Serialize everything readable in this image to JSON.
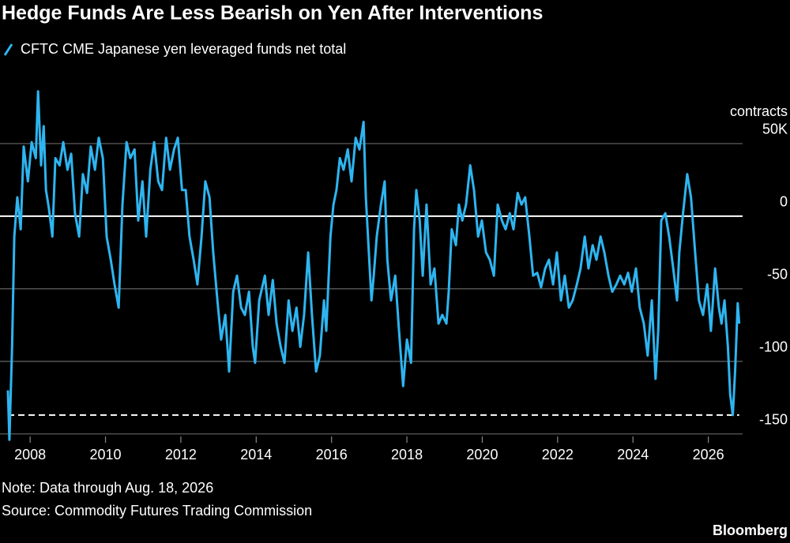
{
  "chart_data": {
    "type": "line",
    "title": "Hedge Funds Are Less Bearish on Yen After Interventions",
    "y_label": "contracts",
    "note": "Note: Data through Aug. 18, 2026",
    "source": "Source: Commodity Futures Trading Commission",
    "brand": "Bloomberg",
    "xlim": [
      2007.2,
      2026.91
    ],
    "xticks": [
      2008,
      2010,
      2012,
      2014,
      2016,
      2018,
      2020,
      2022,
      2024,
      2026
    ],
    "ylim": [
      -155,
      100
    ],
    "yticks": [
      {
        "value": 50,
        "label": "50K"
      },
      0,
      -50,
      -100,
      -150
    ],
    "grid": true,
    "hline": -137,
    "x": [
      2007.41,
      2007.45,
      2007.52,
      2007.58,
      2007.66,
      2007.75,
      2007.83,
      2007.94,
      2008.04,
      2008.15,
      2008.21,
      2008.29,
      2008.36,
      2008.42,
      2008.5,
      2008.59,
      2008.67,
      2008.78,
      2008.88,
      2008.99,
      2009.09,
      2009.19,
      2009.3,
      2009.4,
      2009.51,
      2009.61,
      2009.72,
      2009.82,
      2009.93,
      2010.03,
      2010.14,
      2010.24,
      2010.35,
      2010.45,
      2010.56,
      2010.66,
      2010.77,
      2010.87,
      2010.98,
      2011.08,
      2011.19,
      2011.29,
      2011.4,
      2011.5,
      2011.61,
      2011.71,
      2011.82,
      2011.92,
      2012.03,
      2012.13,
      2012.23,
      2012.34,
      2012.44,
      2012.55,
      2012.65,
      2012.76,
      2012.86,
      2012.97,
      2013.07,
      2013.18,
      2013.28,
      2013.39,
      2013.49,
      2013.6,
      2013.7,
      2013.81,
      2013.91,
      2013.97,
      2014.08,
      2014.23,
      2014.33,
      2014.44,
      2014.54,
      2014.65,
      2014.75,
      2014.86,
      2014.96,
      2015.07,
      2015.17,
      2015.27,
      2015.38,
      2015.48,
      2015.59,
      2015.69,
      2015.8,
      2015.86,
      2015.97,
      2016.05,
      2016.13,
      2016.22,
      2016.32,
      2016.43,
      2016.53,
      2016.64,
      2016.74,
      2016.85,
      2016.91,
      2016.99,
      2017.06,
      2017.12,
      2017.2,
      2017.31,
      2017.41,
      2017.48,
      2017.58,
      2017.69,
      2017.79,
      2017.9,
      2018.0,
      2018.11,
      2018.19,
      2018.25,
      2018.34,
      2018.42,
      2018.52,
      2018.63,
      2018.73,
      2018.84,
      2018.94,
      2019.05,
      2019.11,
      2019.19,
      2019.3,
      2019.38,
      2019.47,
      2019.57,
      2019.68,
      2019.78,
      2019.89,
      2019.99,
      2020.1,
      2020.2,
      2020.31,
      2020.41,
      2020.52,
      2020.62,
      2020.73,
      2020.83,
      2020.94,
      2021.04,
      2021.14,
      2021.25,
      2021.35,
      2021.46,
      2021.56,
      2021.67,
      2021.77,
      2021.88,
      2021.98,
      2022.09,
      2022.19,
      2022.3,
      2022.4,
      2022.51,
      2022.61,
      2022.72,
      2022.82,
      2022.93,
      2023.03,
      2023.14,
      2023.24,
      2023.35,
      2023.45,
      2023.56,
      2023.66,
      2023.77,
      2023.87,
      2023.97,
      2024.08,
      2024.18,
      2024.29,
      2024.39,
      2024.5,
      2024.6,
      2024.67,
      2024.75,
      2024.86,
      2024.96,
      2025.07,
      2025.17,
      2025.23,
      2025.33,
      2025.44,
      2025.54,
      2025.65,
      2025.75,
      2025.86,
      2025.97,
      2026.07,
      2026.18,
      2026.28,
      2026.35,
      2026.43,
      2026.52,
      2026.58,
      2026.65,
      2026.71,
      2026.78,
      2026.82
    ],
    "series": [
      {
        "name": "CFTC CME Japanese yen leveraged funds net total",
        "color": "#2eb5f0",
        "values": [
          -120,
          -154,
          -90,
          -14,
          13,
          -9,
          48,
          24,
          51,
          40,
          86,
          35,
          62,
          18,
          5,
          -14,
          40,
          35,
          51,
          32,
          43,
          2,
          -14,
          29,
          16,
          48,
          32,
          54,
          40,
          -14,
          -30,
          -47,
          -63,
          8,
          51,
          40,
          46,
          -3,
          24,
          -14,
          32,
          51,
          24,
          18,
          54,
          32,
          46,
          54,
          18,
          18,
          -14,
          -30,
          -47,
          -14,
          24,
          13,
          -25,
          -58,
          -85,
          -68,
          -107,
          -52,
          -41,
          -63,
          -68,
          -52,
          -90,
          -101,
          -58,
          -41,
          -68,
          -44,
          -74,
          -90,
          -101,
          -58,
          -79,
          -63,
          -90,
          -68,
          -25,
          -68,
          -107,
          -96,
          -58,
          -79,
          -14,
          8,
          18,
          40,
          32,
          46,
          24,
          54,
          46,
          65,
          13,
          -25,
          -58,
          -41,
          -14,
          8,
          24,
          -30,
          -58,
          -41,
          -79,
          -117,
          -85,
          -101,
          -9,
          18,
          -3,
          -41,
          8,
          -47,
          -36,
          -74,
          -68,
          -74,
          -52,
          -9,
          -20,
          8,
          -3,
          8,
          35,
          18,
          -14,
          -3,
          -25,
          -30,
          -41,
          8,
          -3,
          -9,
          2,
          -9,
          16,
          8,
          13,
          -14,
          -41,
          -39,
          -49,
          -36,
          -30,
          -47,
          -25,
          -58,
          -41,
          -63,
          -58,
          -47,
          -36,
          -14,
          -36,
          -20,
          -30,
          -14,
          -25,
          -41,
          -52,
          -47,
          -41,
          -47,
          -39,
          -52,
          -36,
          -63,
          -74,
          -96,
          -58,
          -112,
          -79,
          -3,
          2,
          -14,
          -36,
          -58,
          -25,
          2,
          29,
          13,
          -25,
          -58,
          -68,
          -47,
          -79,
          -36,
          -63,
          -74,
          -58,
          -90,
          -123,
          -137,
          -107,
          -60,
          -74
        ]
      }
    ]
  }
}
